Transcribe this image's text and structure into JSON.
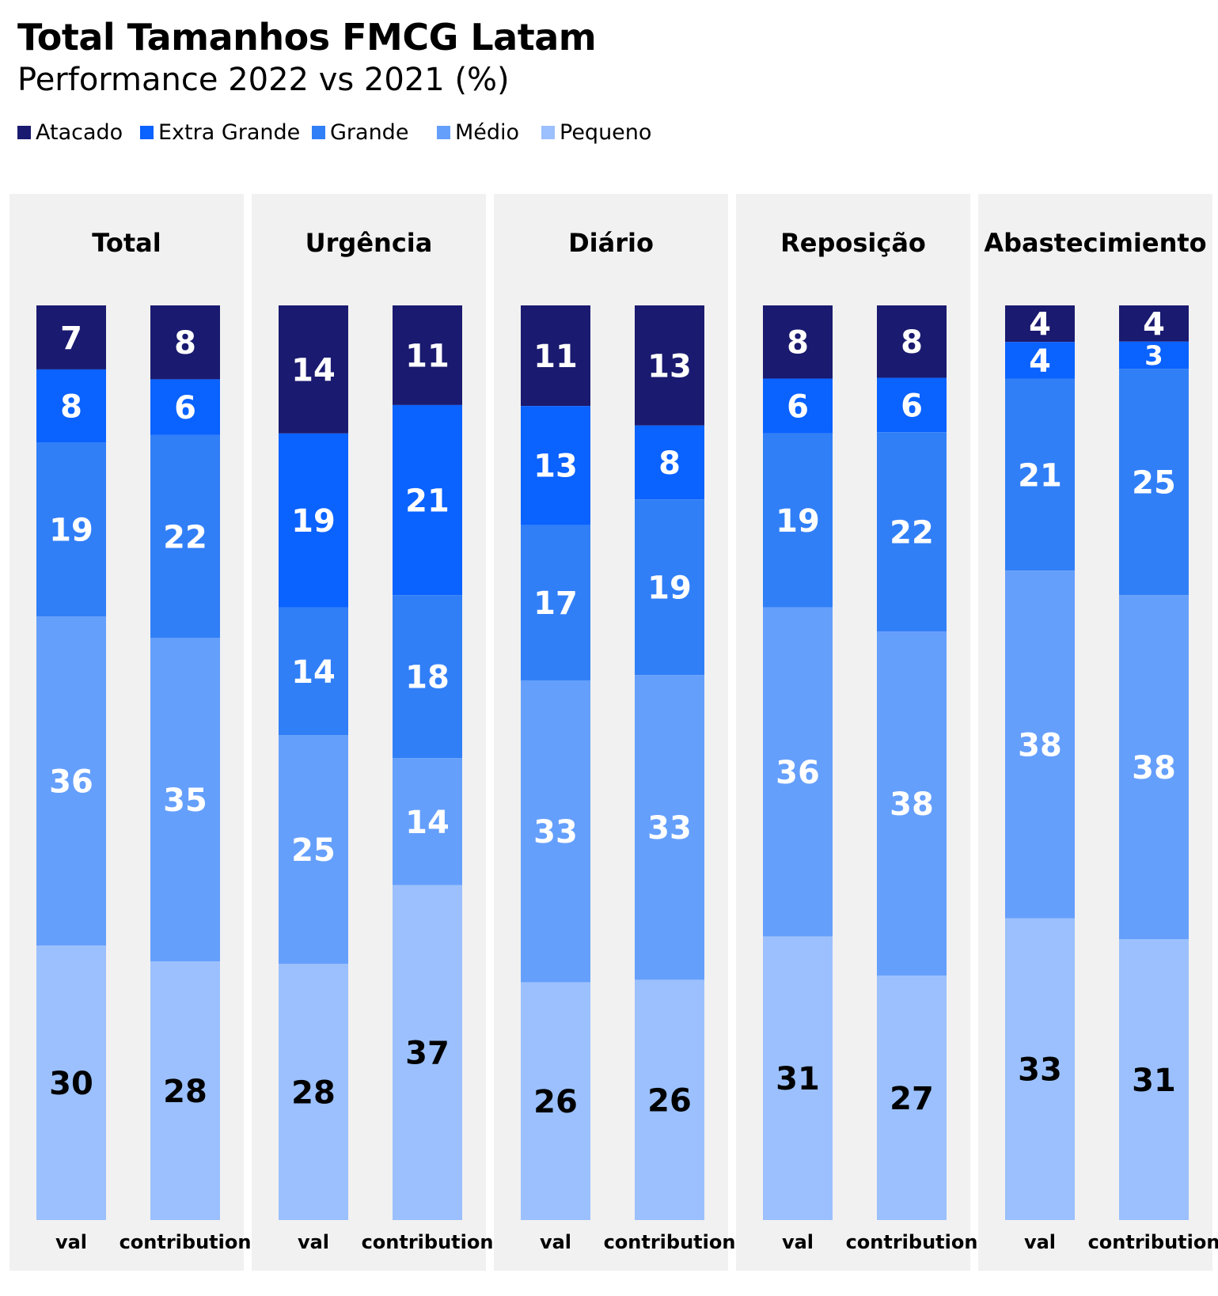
{
  "title": "Total Tamanhos FMCG Latam",
  "subtitle": "Performance 2022 vs 2021 (%)",
  "colors": {
    "Atacado": "#1a1a70",
    "Extra Grande": "#0a62ff",
    "Grande": "#317ff7",
    "Médio": "#659ffc",
    "Pequeno": "#9bc0fd",
    "panel_bg": "#f1f1f1"
  },
  "chart_data": {
    "type": "bar",
    "stacked": true,
    "normalized": true,
    "legend": [
      "Atacado",
      "Extra Grande",
      "Grande",
      "Médio",
      "Pequeno"
    ],
    "legend_position": "top-left",
    "bar_labels": [
      "val",
      "contribution"
    ],
    "panels": [
      {
        "name": "Total",
        "bars": [
          {
            "label": "val",
            "values": {
              "Atacado": 7,
              "Extra Grande": 8,
              "Grande": 19,
              "Médio": 36,
              "Pequeno": 30
            }
          },
          {
            "label": "contribution",
            "values": {
              "Atacado": 8,
              "Extra Grande": 6,
              "Grande": 22,
              "Médio": 35,
              "Pequeno": 28
            }
          }
        ]
      },
      {
        "name": "Urgência",
        "bars": [
          {
            "label": "val",
            "values": {
              "Atacado": 14,
              "Extra Grande": 19,
              "Grande": 14,
              "Médio": 25,
              "Pequeno": 28
            }
          },
          {
            "label": "contribution",
            "values": {
              "Atacado": 11,
              "Extra Grande": 21,
              "Grande": 18,
              "Médio": 14,
              "Pequeno": 37
            }
          }
        ]
      },
      {
        "name": "Diário",
        "bars": [
          {
            "label": "val",
            "values": {
              "Atacado": 11,
              "Extra Grande": 13,
              "Grande": 17,
              "Médio": 33,
              "Pequeno": 26
            }
          },
          {
            "label": "contribution",
            "values": {
              "Atacado": 13,
              "Extra Grande": 8,
              "Grande": 19,
              "Médio": 33,
              "Pequeno": 26
            }
          }
        ]
      },
      {
        "name": "Reposição",
        "bars": [
          {
            "label": "val",
            "values": {
              "Atacado": 8,
              "Extra Grande": 6,
              "Grande": 19,
              "Médio": 36,
              "Pequeno": 31
            }
          },
          {
            "label": "contribution",
            "values": {
              "Atacado": 8,
              "Extra Grande": 6,
              "Grande": 22,
              "Médio": 38,
              "Pequeno": 27
            }
          }
        ]
      },
      {
        "name": "Abastecimiento",
        "bars": [
          {
            "label": "val",
            "values": {
              "Atacado": 4,
              "Extra Grande": 4,
              "Grande": 21,
              "Médio": 38,
              "Pequeno": 33
            }
          },
          {
            "label": "contribution",
            "values": {
              "Atacado": 4,
              "Extra Grande": 3,
              "Grande": 25,
              "Médio": 38,
              "Pequeno": 31
            }
          }
        ]
      }
    ]
  }
}
